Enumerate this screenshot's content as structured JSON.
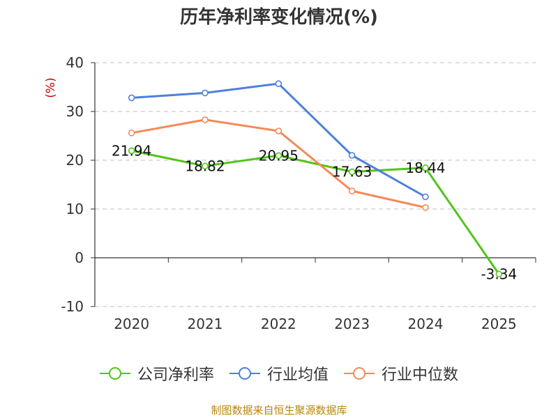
{
  "chart_data": {
    "type": "line",
    "title": "历年净利率变化情况(%)",
    "ylabel": "(%)",
    "xlabel": "",
    "categories": [
      "2020",
      "2021",
      "2022",
      "2023",
      "2024",
      "2025"
    ],
    "ylim": [
      -10,
      40
    ],
    "yticks": [
      -10,
      0,
      10,
      20,
      30,
      40
    ],
    "grid": true,
    "legend_position": "bottom",
    "series": [
      {
        "name": "公司净利率",
        "color": "#52c41a",
        "values": [
          21.94,
          18.82,
          20.95,
          17.63,
          18.44,
          -3.34
        ],
        "labels": [
          "21.94",
          "18.82",
          "20.95",
          "17.63",
          "18.44",
          "-3.34"
        ]
      },
      {
        "name": "行业均值",
        "color": "#4f7fdc",
        "values": [
          32.8,
          33.8,
          35.7,
          21.0,
          12.5,
          null
        ]
      },
      {
        "name": "行业中位数",
        "color": "#f4895a",
        "values": [
          25.6,
          28.3,
          26.0,
          13.7,
          10.3,
          null
        ]
      }
    ]
  },
  "source_text": "制图数据来自恒生聚源数据库"
}
